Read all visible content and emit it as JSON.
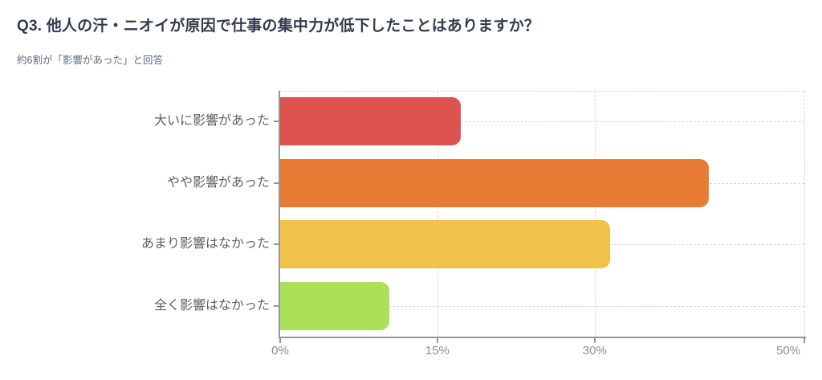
{
  "header": {
    "title": "Q3. 他人の汗・ニオイが原因で仕事の集中力が低下したことはありますか？",
    "subtitle": "約6割が「影響があった」と回答"
  },
  "chart_data": {
    "type": "bar",
    "orientation": "horizontal",
    "title": "Q3. 他人の汗・ニオイが原因で仕事の集中力が低下したことはありますか？",
    "subtitle": "約6割が「影響があった」と回答",
    "categories": [
      "大いに影響があった",
      "やや影響があった",
      "あまり影響はなかった",
      "全く影響はなかった"
    ],
    "values": [
      17.2,
      40.9,
      31.5,
      10.4
    ],
    "unit": "%",
    "colors": [
      "#dc5350",
      "#e87c35",
      "#f0c24a",
      "#abe159"
    ],
    "xlabel": "",
    "ylabel": "",
    "xlim": [
      0,
      50
    ],
    "xticks": [
      0,
      15,
      30,
      50
    ],
    "xtick_labels": [
      "0%",
      "15%",
      "30%",
      "50%"
    ],
    "grid": "dashed",
    "legend": "none",
    "background": "#ffffff"
  }
}
